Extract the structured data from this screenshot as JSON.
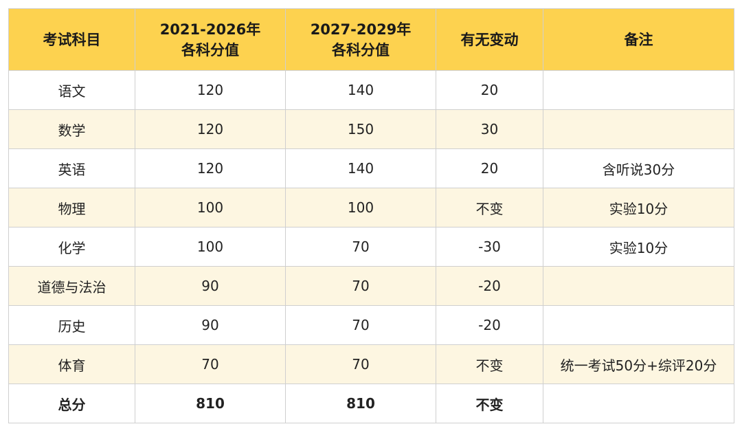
{
  "table": {
    "header": [
      "考试科目",
      "2021-2026年\n各科分值",
      "2027-2029年\n各科分值",
      "有无变动",
      "备注"
    ],
    "rows": [
      [
        "语文",
        120,
        140,
        20,
        ""
      ],
      [
        "数学",
        120,
        150,
        30,
        ""
      ],
      [
        "英语",
        120,
        140,
        20,
        "含听说30分"
      ],
      [
        "物理",
        100,
        100,
        "不变",
        "实验10分"
      ],
      [
        "化学",
        100,
        70,
        -30,
        "实验10分"
      ],
      [
        "道德与法治",
        90,
        70,
        -20,
        ""
      ],
      [
        "历史",
        90,
        70,
        -20,
        ""
      ],
      [
        "体育",
        70,
        70,
        "不变",
        "统一考试50分+综评20分"
      ]
    ],
    "total": [
      "总分",
      810,
      810,
      "不变",
      ""
    ]
  }
}
